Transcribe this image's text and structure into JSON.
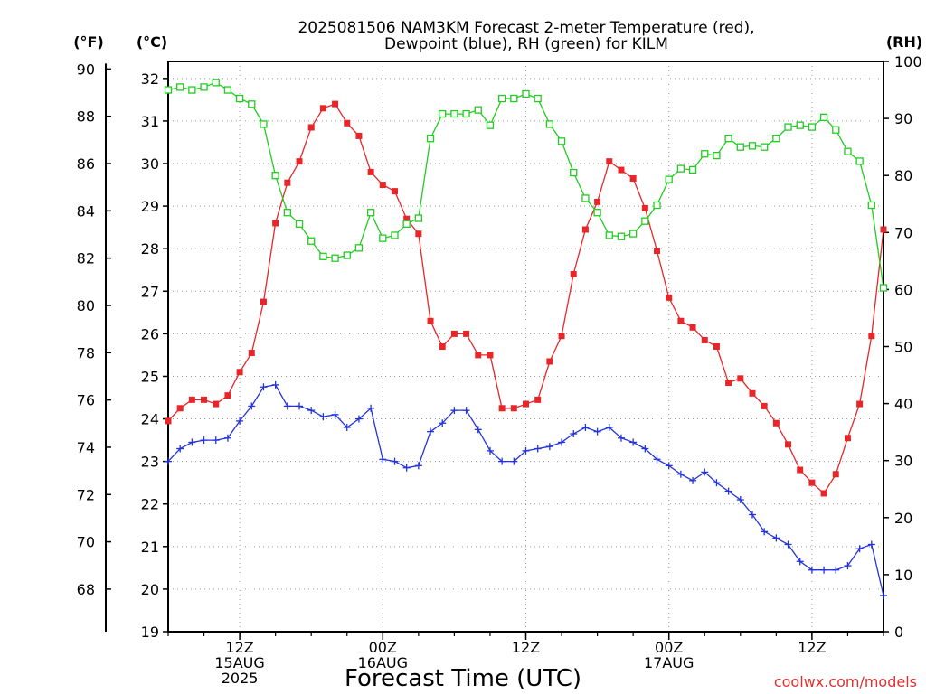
{
  "title_line1": "2025081506 NAM3KM Forecast 2-meter Temperature (red),",
  "title_line2": "Dewpoint (blue), RH (green) for KILM",
  "xlabel": "Forecast Time (UTC)",
  "unit_f": "(°F)",
  "unit_c": "(°C)",
  "unit_rh": "(RH)",
  "watermark": "coolwx.com/models",
  "chart_data": {
    "type": "line",
    "x_step_hours": 1,
    "x_start_hour": 6,
    "x_end_hour": 66,
    "x_labels": [
      {
        "hour": 12,
        "lines": [
          "12Z",
          "15AUG",
          "2025"
        ]
      },
      {
        "hour": 24,
        "lines": [
          "00Z",
          "16AUG"
        ]
      },
      {
        "hour": 36,
        "lines": [
          "12Z"
        ]
      },
      {
        "hour": 48,
        "lines": [
          "00Z",
          "17AUG"
        ]
      },
      {
        "hour": 60,
        "lines": [
          "12Z"
        ]
      }
    ],
    "y_left_c": {
      "label": "(°C)",
      "range": [
        19,
        32.4
      ],
      "ticks": [
        19,
        20,
        21,
        22,
        23,
        24,
        25,
        26,
        27,
        28,
        29,
        30,
        31,
        32
      ]
    },
    "y_left_f": {
      "label": "(°F)",
      "ticks": [
        68,
        70,
        72,
        74,
        76,
        78,
        80,
        82,
        84,
        86,
        88,
        90
      ]
    },
    "y_right_rh": {
      "label": "(RH)",
      "range": [
        0,
        100
      ],
      "ticks": [
        0,
        10,
        20,
        30,
        40,
        50,
        60,
        70,
        80,
        90,
        100
      ]
    },
    "grid": true,
    "series": [
      {
        "name": "2-meter Temperature",
        "color": "#e8262a",
        "marker": "filled-square",
        "axis": "c",
        "values": [
          23.95,
          24.25,
          24.45,
          24.45,
          24.35,
          24.55,
          25.1,
          25.55,
          26.75,
          28.6,
          29.55,
          30.05,
          30.85,
          31.3,
          31.4,
          30.95,
          30.65,
          29.8,
          29.5,
          29.35,
          28.7,
          28.35,
          26.3,
          25.7,
          26.0,
          26.0,
          25.5,
          25.5,
          24.25,
          24.25,
          24.35,
          24.45,
          25.35,
          25.95,
          27.4,
          28.45,
          29.1,
          30.05,
          29.85,
          29.65,
          28.95,
          27.95,
          26.85,
          26.3,
          26.15,
          25.85,
          25.7,
          24.85,
          24.95,
          24.6,
          24.3,
          23.9,
          23.4,
          22.8,
          22.5,
          22.25,
          22.7,
          23.55,
          24.35,
          25.95,
          28.45
        ]
      },
      {
        "name": "Dewpoint",
        "color": "#2233dd",
        "marker": "plus",
        "axis": "c",
        "values": [
          23.0,
          23.3,
          23.45,
          23.5,
          23.5,
          23.55,
          23.95,
          24.3,
          24.75,
          24.8,
          24.3,
          24.3,
          24.2,
          24.05,
          24.1,
          23.8,
          24.0,
          24.25,
          23.05,
          23.0,
          22.85,
          22.9,
          23.7,
          23.9,
          24.2,
          24.2,
          23.75,
          23.25,
          23.0,
          23.0,
          23.25,
          23.3,
          23.35,
          23.45,
          23.65,
          23.8,
          23.7,
          23.8,
          23.55,
          23.45,
          23.3,
          23.05,
          22.9,
          22.7,
          22.55,
          22.75,
          22.5,
          22.3,
          22.1,
          21.75,
          21.35,
          21.2,
          21.05,
          20.65,
          20.45,
          20.45,
          20.45,
          20.55,
          20.95,
          21.05,
          19.85
        ]
      },
      {
        "name": "RH",
        "color": "#22cc22",
        "marker": "open-square",
        "axis": "rh",
        "values": [
          95,
          95.5,
          95,
          95.5,
          96.3,
          95,
          93.5,
          92.5,
          89,
          80,
          73.5,
          71.5,
          68.5,
          65.8,
          65.5,
          66,
          67.3,
          73.5,
          69,
          69.5,
          71.5,
          72.5,
          86.5,
          90.8,
          90.8,
          90.8,
          91.5,
          88.8,
          93.5,
          93.5,
          94.3,
          93.5,
          89,
          86,
          80.5,
          76,
          73.5,
          69.5,
          69.3,
          69.8,
          72,
          74.8,
          79.3,
          81.2,
          81,
          83.8,
          83.5,
          86.5,
          85,
          85.2,
          85,
          86.5,
          88.5,
          88.8,
          88.5,
          90.2,
          88,
          84.2,
          82.5,
          74.8,
          60.3
        ]
      }
    ]
  }
}
